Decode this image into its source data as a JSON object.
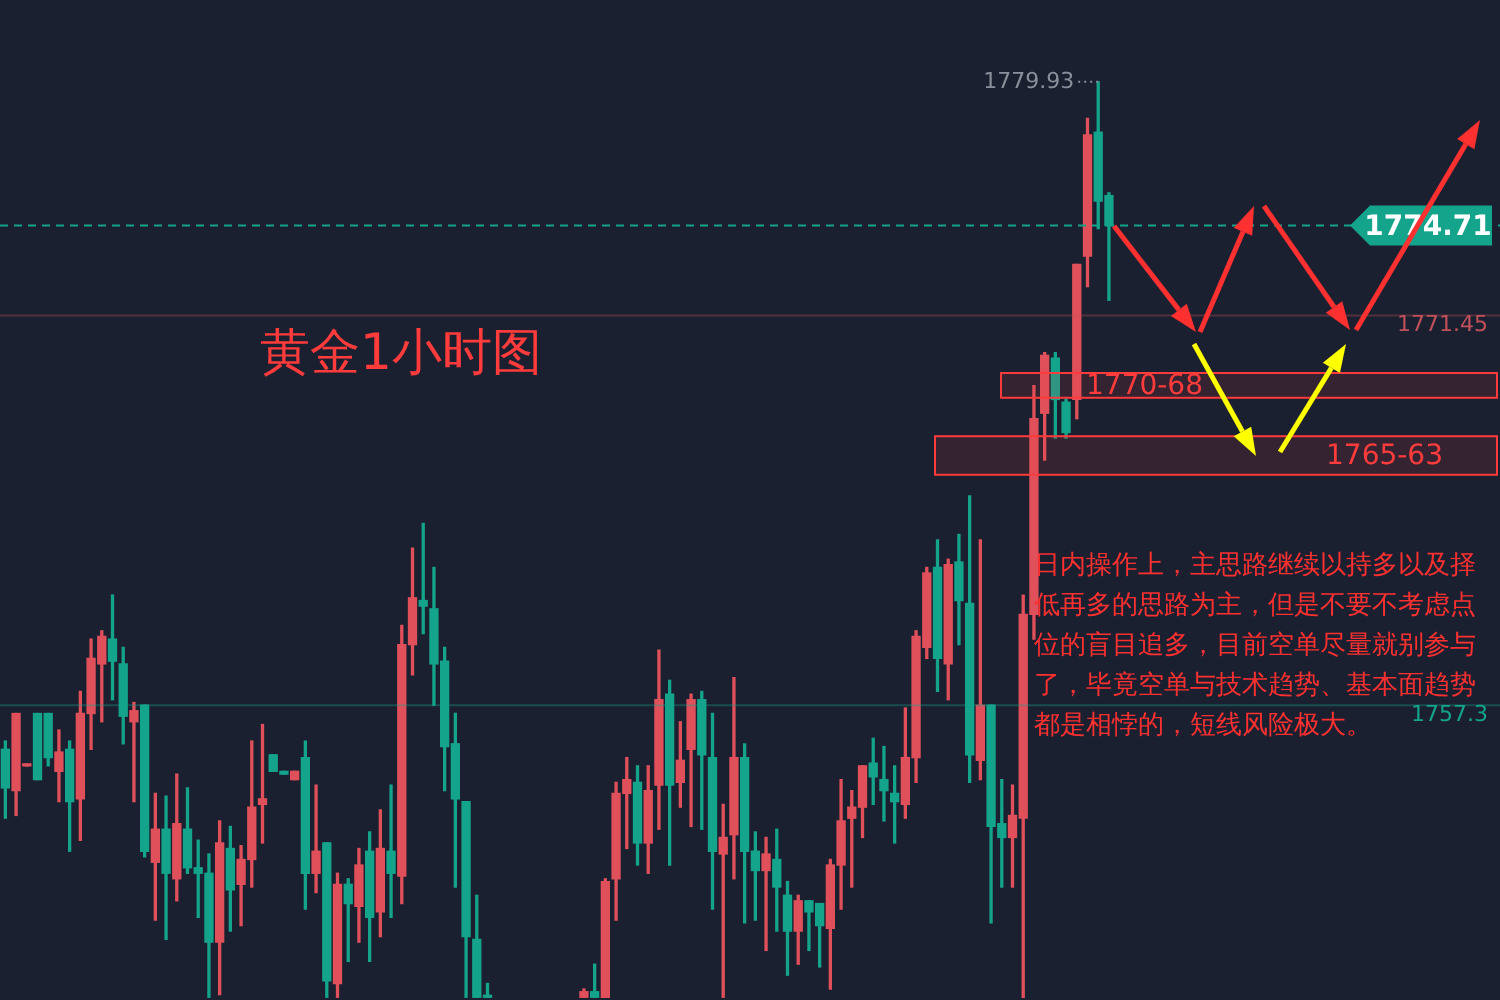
{
  "chart_data": {
    "type": "candlestick",
    "title": "黄金1小时图",
    "categories": [
      null,
      null,
      null,
      null,
      null,
      null,
      null,
      null,
      null,
      null,
      null,
      null,
      null,
      null,
      null,
      null,
      null,
      null,
      null,
      null,
      null,
      null,
      null,
      null,
      null,
      null,
      null,
      null,
      null,
      null,
      null,
      null,
      null,
      null,
      null,
      null,
      null,
      null,
      null,
      null,
      null,
      null,
      null,
      null,
      null,
      null,
      null,
      null,
      null,
      null,
      null,
      null,
      null,
      null,
      null,
      null,
      null,
      null,
      null,
      null,
      null,
      null,
      null,
      null,
      null,
      null,
      null,
      null,
      null,
      null,
      null,
      null,
      null,
      null,
      null,
      null,
      null,
      null,
      null,
      null,
      null,
      null,
      null,
      null,
      null,
      null,
      null,
      null,
      null,
      null,
      null,
      null,
      null,
      null,
      null,
      null,
      null,
      null,
      null,
      null,
      null,
      null,
      null,
      null,
      null,
      null,
      null,
      null,
      null,
      null,
      null,
      null,
      null,
      null,
      null,
      null,
      null,
      null,
      null,
      null,
      null,
      null,
      null,
      null,
      null,
      null,
      null,
      null,
      null,
      null,
      null,
      null,
      null,
      null,
      null,
      null,
      null,
      null,
      null,
      null
    ],
    "ohlc": [
      [
        1755.7,
        1756.0,
        1753.2,
        1754.3
      ],
      [
        1754.2,
        1757.0,
        1753.3,
        1757.0
      ],
      [
        1755.1,
        1755.1,
        1755.1,
        1755.1
      ],
      [
        1757.0,
        1757.0,
        1754.6,
        1754.6
      ],
      [
        1757.0,
        1757.0,
        1755.1,
        1755.4
      ],
      [
        1754.9,
        1756.4,
        1753.8,
        1755.6
      ],
      [
        1755.7,
        1756.0,
        1752.0,
        1753.8
      ],
      [
        1753.9,
        1757.8,
        1752.4,
        1757.0
      ],
      [
        1757.0,
        1759.7,
        1755.7,
        1759.0
      ],
      [
        1758.8,
        1760.0,
        1756.7,
        1759.8
      ],
      [
        1759.7,
        1761.3,
        1757.5,
        1758.9
      ],
      [
        1758.8,
        1759.4,
        1755.9,
        1756.9
      ],
      [
        1756.7,
        1757.4,
        1753.8,
        1757.1
      ],
      [
        1757.3,
        1757.3,
        1751.8,
        1752.0
      ],
      [
        1751.6,
        1754.1,
        1749.5,
        1752.8
      ],
      [
        1752.8,
        1754.0,
        1748.8,
        1751.2
      ],
      [
        1751.0,
        1754.8,
        1750.2,
        1753.0
      ],
      [
        1752.8,
        1754.3,
        1751.2,
        1751.4
      ],
      [
        1751.4,
        1752.4,
        1749.6,
        1751.2
      ],
      [
        1751.2,
        1751.9,
        1746.7,
        1748.7
      ],
      [
        1748.7,
        1753.1,
        1746.8,
        1752.3
      ],
      [
        1752.1,
        1752.9,
        1749.1,
        1750.6
      ],
      [
        1750.8,
        1752.2,
        1749.3,
        1751.7
      ],
      [
        1751.7,
        1756.0,
        1750.7,
        1753.6
      ],
      [
        1753.7,
        1756.6,
        1752.3,
        1753.9
      ],
      [
        1755.5,
        1755.5,
        1754.9,
        1754.9
      ],
      [
        1754.9,
        1754.9,
        1754.8,
        1754.8
      ],
      [
        1754.6,
        1754.9,
        1754.6,
        1754.9
      ],
      [
        1755.4,
        1756.0,
        1749.9,
        1751.2
      ],
      [
        1751.2,
        1754.4,
        1750.5,
        1752.0
      ],
      [
        1752.3,
        1752.3,
        1746.7,
        1747.3
      ],
      [
        1747.2,
        1751.2,
        1746.7,
        1750.8
      ],
      [
        1750.8,
        1751.0,
        1748.0,
        1750.1
      ],
      [
        1750.0,
        1752.1,
        1748.7,
        1751.5
      ],
      [
        1752.0,
        1752.7,
        1748.0,
        1749.6
      ],
      [
        1749.8,
        1753.5,
        1748.9,
        1752.1
      ],
      [
        1752.0,
        1754.4,
        1749.6,
        1751.2
      ],
      [
        1751.1,
        1760.2,
        1750.1,
        1759.5
      ],
      [
        1759.5,
        1763.0,
        1758.4,
        1761.2
      ],
      [
        1761.1,
        1763.9,
        1759.9,
        1760.9
      ],
      [
        1760.8,
        1762.3,
        1757.3,
        1758.8
      ],
      [
        1758.9,
        1759.4,
        1754.2,
        1755.8
      ],
      [
        1755.9,
        1757.0,
        1750.7,
        1753.9
      ],
      [
        1753.8,
        1753.8,
        1746.7,
        1748.9
      ],
      [
        1748.8,
        1750.4,
        1746.7,
        1746.7
      ],
      [
        1746.7,
        1747.2,
        1746.7,
        1746.7
      ],
      null,
      null,
      null,
      null,
      null,
      null,
      null,
      null,
      [
        1746.7,
        1747.0,
        1746.7,
        1746.9
      ],
      [
        1746.9,
        1747.9,
        1746.7,
        1746.7
      ],
      [
        1746.7,
        1751.0,
        1746.7,
        1750.9
      ],
      [
        1751.0,
        1754.5,
        1749.5,
        1754.1
      ],
      [
        1754.1,
        1755.4,
        1752.1,
        1754.6
      ],
      [
        1754.5,
        1755.1,
        1751.5,
        1752.3
      ],
      [
        1752.3,
        1755.1,
        1751.2,
        1754.2
      ],
      [
        1754.4,
        1759.3,
        1752.8,
        1757.5
      ],
      [
        1757.7,
        1758.2,
        1751.5,
        1754.4
      ],
      [
        1754.5,
        1756.7,
        1753.6,
        1755.3
      ],
      [
        1755.7,
        1757.7,
        1752.9,
        1757.5
      ],
      [
        1757.5,
        1757.8,
        1752.8,
        1755.5
      ],
      [
        1755.4,
        1757.0,
        1749.9,
        1752.0
      ],
      [
        1751.9,
        1753.7,
        1746.7,
        1752.5
      ],
      [
        1752.6,
        1758.3,
        1751.0,
        1755.4
      ],
      [
        1755.4,
        1755.9,
        1749.4,
        1752.0
      ],
      [
        1752.0,
        1752.7,
        1749.5,
        1751.3
      ],
      [
        1751.3,
        1752.5,
        1748.4,
        1751.9
      ],
      [
        1751.7,
        1752.8,
        1749.1,
        1750.7
      ],
      [
        1750.4,
        1750.9,
        1747.5,
        1749.1
      ],
      [
        1749.1,
        1750.4,
        1747.9,
        1750.2
      ],
      [
        1750.2,
        1750.2,
        1748.4,
        1749.8
      ],
      [
        1750.1,
        1750.1,
        1747.8,
        1749.3
      ],
      [
        1749.2,
        1751.7,
        1747.0,
        1751.5
      ],
      [
        1751.5,
        1754.6,
        1749.9,
        1753.1
      ],
      [
        1753.2,
        1754.2,
        1750.7,
        1753.6
      ],
      [
        1753.6,
        1755.1,
        1752.5,
        1755.1
      ],
      [
        1755.2,
        1756.1,
        1753.7,
        1754.7
      ],
      [
        1754.6,
        1755.8,
        1753.1,
        1754.2
      ],
      [
        1754.1,
        1755.1,
        1752.3,
        1753.8
      ],
      [
        1753.7,
        1757.2,
        1753.2,
        1755.4
      ],
      [
        1755.4,
        1760.0,
        1754.5,
        1759.8
      ],
      [
        1759.4,
        1762.3,
        1759.0,
        1762.1
      ],
      [
        1762.3,
        1763.3,
        1757.8,
        1759.0
      ],
      [
        1758.8,
        1762.6,
        1757.5,
        1762.4
      ],
      [
        1762.5,
        1763.5,
        1759.5,
        1761.1
      ],
      [
        1761.0,
        1764.9,
        1754.5,
        1755.5
      ],
      [
        1755.3,
        1763.3,
        1754.6,
        1757.3
      ],
      [
        1757.3,
        1757.3,
        1749.4,
        1752.9
      ],
      [
        1753.0,
        1754.6,
        1750.7,
        1752.5
      ],
      [
        1752.5,
        1754.4,
        1750.7,
        1753.3
      ],
      [
        1753.2,
        1761.3,
        1746.7,
        1760.6
      ],
      [
        1760.6,
        1768.9,
        1759.7,
        1767.7
      ],
      [
        1767.9,
        1770.1,
        1766.2,
        1770.0
      ],
      [
        1769.9,
        1770.1,
        1767.0,
        1768.4
      ],
      [
        1768.3,
        1768.4,
        1767.0,
        1767.2
      ],
      [
        1768.4,
        1773.3,
        1767.7,
        1773.3
      ],
      [
        1773.6,
        1778.6,
        1772.5,
        1778.0
      ],
      [
        1778.1,
        1779.93,
        1774.6,
        1775.6
      ],
      [
        1775.8,
        1775.9,
        1772.0,
        1774.71
      ],
      null,
      null,
      null,
      null,
      null,
      null,
      null,
      null,
      null,
      null,
      null,
      null,
      null,
      null,
      null,
      null,
      null,
      null,
      null,
      null,
      null,
      null,
      null,
      null,
      null,
      null,
      null,
      null,
      null,
      null,
      null,
      null,
      null,
      null,
      null,
      null
    ],
    "colors": [
      "#14a38b",
      "#e0505a",
      "#e0505a",
      "#14a38b",
      "#14a38b",
      "#e0505a",
      "#14a38b",
      "#e0505a",
      "#e0505a",
      "#e0505a",
      "#14a38b",
      "#14a38b",
      "#e0505a",
      "#14a38b",
      "#e0505a",
      "#14a38b",
      "#e0505a",
      "#14a38b",
      "#14a38b",
      "#14a38b",
      "#e0505a",
      "#14a38b",
      "#e0505a",
      "#e0505a",
      "#e0505a",
      "#14a38b",
      "#14a38b",
      "#e0505a",
      "#14a38b",
      "#e0505a",
      "#14a38b",
      "#e0505a",
      "#14a38b",
      "#e0505a",
      "#14a38b",
      "#e0505a",
      "#14a38b",
      "#e0505a",
      "#e0505a",
      "#14a38b",
      "#14a38b",
      "#14a38b",
      "#14a38b",
      "#14a38b",
      "#14a38b",
      "#14a38b",
      null,
      null,
      null,
      null,
      null,
      null,
      null,
      null,
      "#e0505a",
      "#14a38b",
      "#e0505a",
      "#e0505a",
      "#e0505a",
      "#14a38b",
      "#e0505a",
      "#e0505a",
      "#14a38b",
      "#e0505a",
      "#e0505a",
      "#14a38b",
      "#14a38b",
      "#e0505a",
      "#e0505a",
      "#14a38b",
      "#14a38b",
      "#e0505a",
      "#14a38b",
      "#14a38b",
      "#e0505a",
      "#14a38b",
      "#14a38b",
      "#e0505a",
      "#e0505a",
      "#e0505a",
      "#e0505a",
      "#14a38b",
      "#14a38b",
      "#14a38b",
      "#e0505a",
      "#e0505a",
      "#e0505a",
      "#14a38b",
      "#e0505a",
      "#14a38b",
      "#14a38b",
      "#e0505a",
      "#14a38b",
      "#14a38b",
      "#e0505a",
      "#e0505a",
      "#e0505a",
      "#e0505a",
      "#14a38b",
      "#14a38b",
      "#e0505a",
      "#e0505a",
      "#14a38b",
      "#14a38b",
      null,
      null,
      null,
      null,
      null,
      null,
      null,
      null,
      null,
      null,
      null,
      null,
      null,
      null,
      null,
      null,
      null,
      null,
      null,
      null,
      null,
      null,
      null,
      null,
      null,
      null,
      null,
      null,
      null,
      null,
      null,
      null,
      null,
      null,
      null,
      null
    ],
    "ylim": [
      1746.6,
      1782.9
    ],
    "tick_labels": false,
    "ref_lines": [
      {
        "axis": "y",
        "value": 1774.71,
        "label": "1774.71",
        "color": "#14a38b",
        "line_style": "dashed"
      },
      {
        "axis": "y",
        "value": 1771.45,
        "label": "1771.45",
        "color": "#c0505a"
      },
      {
        "axis": "y",
        "value": 1757.3,
        "label": "1757.3",
        "color": "#14a38b"
      }
    ],
    "bands": [
      {
        "axis": "y",
        "from": 1768.5,
        "to": 1769.4,
        "label": "1770-68",
        "color": "#ff3b3b"
      },
      {
        "axis": "y",
        "from": 1765.7,
        "to": 1767.1,
        "label": "1765-63",
        "color": "#ff3b3b"
      }
    ],
    "annotations": [
      "1779.93",
      "日内操作上，主思路继续以持多以及择低再多的思路为主，但是不要不考虑点位的盲目追多，目前空单尽量就别参与了，毕竟空单与技术趋势、基本面趋势都是相悖的，短线风险极大。"
    ]
  }
}
